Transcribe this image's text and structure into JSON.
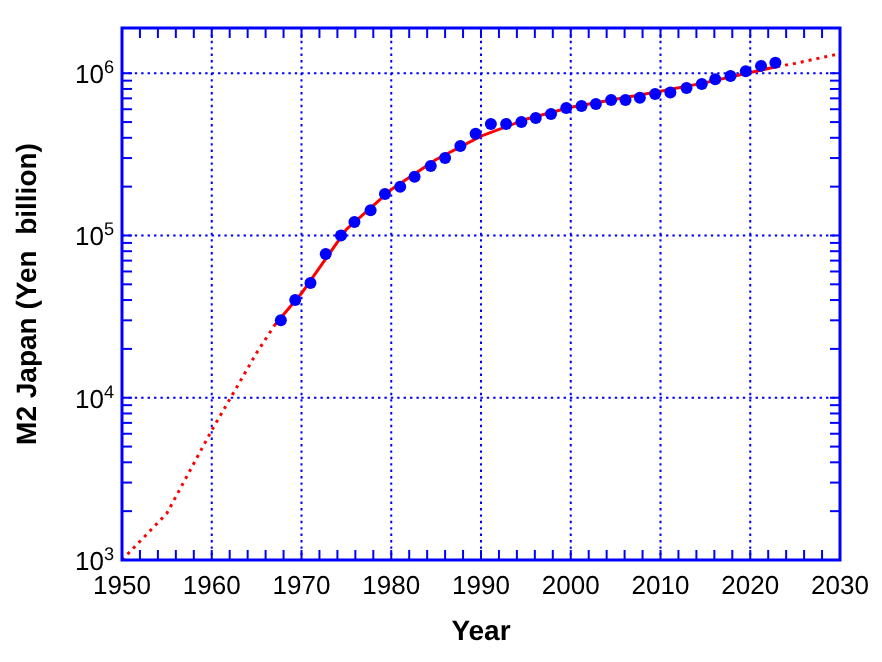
{
  "chart_data": {
    "type": "scatter",
    "xlabel": "Year",
    "ylabel": "M2 Japan (Yen  billion)",
    "xlim": [
      1950,
      2030
    ],
    "xticks": [
      1950,
      1960,
      1970,
      1980,
      1990,
      2000,
      2010,
      2020,
      2030
    ],
    "ylim": [
      1000,
      1900000
    ],
    "yticks": [
      {
        "value": 1000,
        "label": "10$^{3}$"
      },
      {
        "value": 10000,
        "label": "10$^{4}$"
      },
      {
        "value": 100000,
        "label": "10$^{5}$"
      },
      {
        "value": 1000000,
        "label": "10$^{6}$"
      }
    ],
    "log": "y",
    "grid": true,
    "series": [
      {
        "type": "line",
        "color": "#ff0000",
        "marker": "none",
        "line_style": "dotted",
        "x": [
          1950,
          1955,
          1960,
          1965,
          1967,
          1995,
          2023,
          2025,
          2030
        ],
        "values": [
          1000,
          1940,
          6300,
          18900,
          28000,
          null,
          1100000,
          1150000,
          1320000
        ]
      },
      {
        "type": "line",
        "color": "#ff0000",
        "marker": "none",
        "line_style": "solid",
        "x": [
          1967,
          1970,
          1975,
          1980,
          1985,
          1990,
          1995,
          2000,
          2005,
          2010,
          2015,
          2020,
          2023
        ],
        "values": [
          28000,
          44000,
          109000,
          192000,
          294000,
          410000,
          520000,
          617000,
          692000,
          774000,
          875000,
          1010000,
          1100000
        ]
      },
      {
        "color": "#0000ff",
        "marker": "circle",
        "x": [
          1967.7,
          1969.3,
          1971.0,
          1972.7,
          1974.4,
          1975.9,
          1977.7,
          1979.3,
          1981.0,
          1982.6,
          1984.4,
          1986.0,
          1987.7,
          1989.4,
          1991.1,
          1992.8,
          1994.5,
          1996.1,
          1997.8,
          1999.5,
          2001.2,
          2002.8,
          2004.5,
          2006.1,
          2007.7,
          2009.4,
          2011.1,
          2012.9,
          2014.6,
          2016.1,
          2017.8,
          2019.5,
          2021.2,
          2022.8
        ],
        "values": [
          30000,
          40000,
          51000,
          77000,
          100000,
          121000,
          143000,
          180000,
          200000,
          230000,
          268000,
          300000,
          356000,
          423000,
          487000,
          487000,
          501000,
          530000,
          561000,
          611000,
          628000,
          647000,
          684000,
          684000,
          705000,
          745000,
          760000,
          811000,
          859000,
          918000,
          963000,
          1030000,
          1110000,
          1160000
        ]
      }
    ]
  }
}
